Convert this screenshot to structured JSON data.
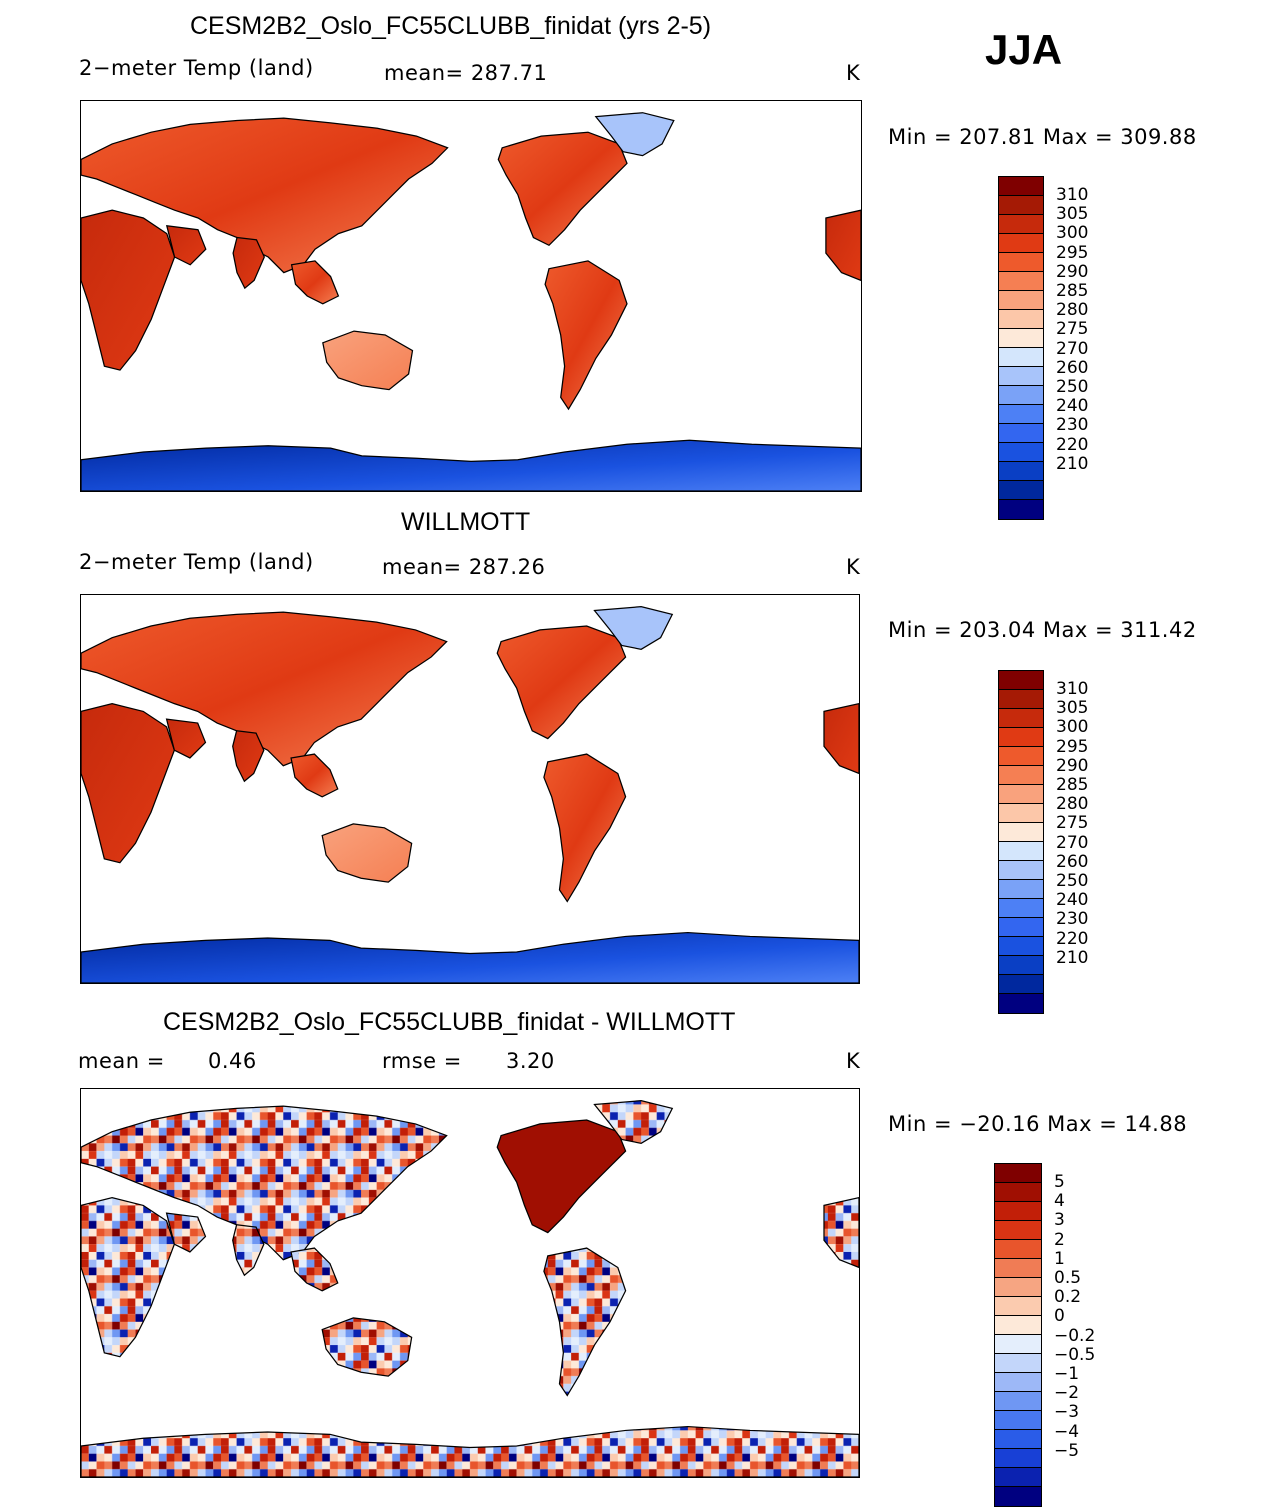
{
  "season": "JJA",
  "units": "K",
  "colors": {
    "abs_scale": [
      "#000080",
      "#00289e",
      "#0a3fc4",
      "#1a52e0",
      "#3366f0",
      "#4d80f5",
      "#7aa2f7",
      "#a8c4fa",
      "#d4e6fc",
      "#fde9d9",
      "#fcc7a9",
      "#f9a27d",
      "#f57f53",
      "#ee5a2c",
      "#e03a14",
      "#c62a0c",
      "#a51a05",
      "#7f0000"
    ],
    "diff_scale": [
      "#000080",
      "#0b22b0",
      "#1840d6",
      "#2a5ce8",
      "#4878f0",
      "#6f97f3",
      "#9db8f7",
      "#c3d6fa",
      "#e4eefc",
      "#fde9d9",
      "#fbcbaf",
      "#f6a582",
      "#f07c55",
      "#e8552c",
      "#da3414",
      "#c21f08",
      "#a00f02",
      "#7f0000"
    ]
  },
  "chart_data": [
    {
      "type": "heatmap",
      "title": "CESM2B2_Oslo_FC55CLUBB_finidat (yrs 2-5)",
      "variable": "2−meter Temp (land)",
      "stat_text": "mean=  287.71",
      "units": "K",
      "minmax_text": "Min  =  207.81  Max  =  309.88",
      "min": 207.81,
      "max": 309.88,
      "mean": 287.71,
      "levels": [
        "310",
        "305",
        "300",
        "295",
        "290",
        "285",
        "280",
        "275",
        "270",
        "260",
        "250",
        "240",
        "230",
        "220",
        "210"
      ]
    },
    {
      "type": "heatmap",
      "title": "WILLMOTT",
      "variable": "2−meter Temp (land)",
      "stat_text": "mean=  287.26",
      "units": "K",
      "minmax_text": "Min  =  203.04  Max  =  311.42",
      "min": 203.04,
      "max": 311.42,
      "mean": 287.26,
      "levels": [
        "310",
        "305",
        "300",
        "295",
        "290",
        "285",
        "280",
        "275",
        "270",
        "260",
        "250",
        "240",
        "230",
        "220",
        "210"
      ]
    },
    {
      "type": "heatmap",
      "title": "CESM2B2_Oslo_FC55CLUBB_finidat - WILLMOTT",
      "mean_label": "mean  =",
      "mean_value": "0.46",
      "rmse_label": "rmse  =",
      "rmse_value": "3.20",
      "units": "K",
      "minmax_text": "Min  =  −20.16  Max  =     14.88",
      "min": -20.16,
      "max": 14.88,
      "mean": 0.46,
      "rmse": 3.2,
      "levels": [
        "5",
        "4",
        "3",
        "2",
        "1",
        "0.5",
        "0.2",
        "0",
        "−0.2",
        "−0.5",
        "−1",
        "−2",
        "−3",
        "−4",
        "−5"
      ]
    }
  ]
}
